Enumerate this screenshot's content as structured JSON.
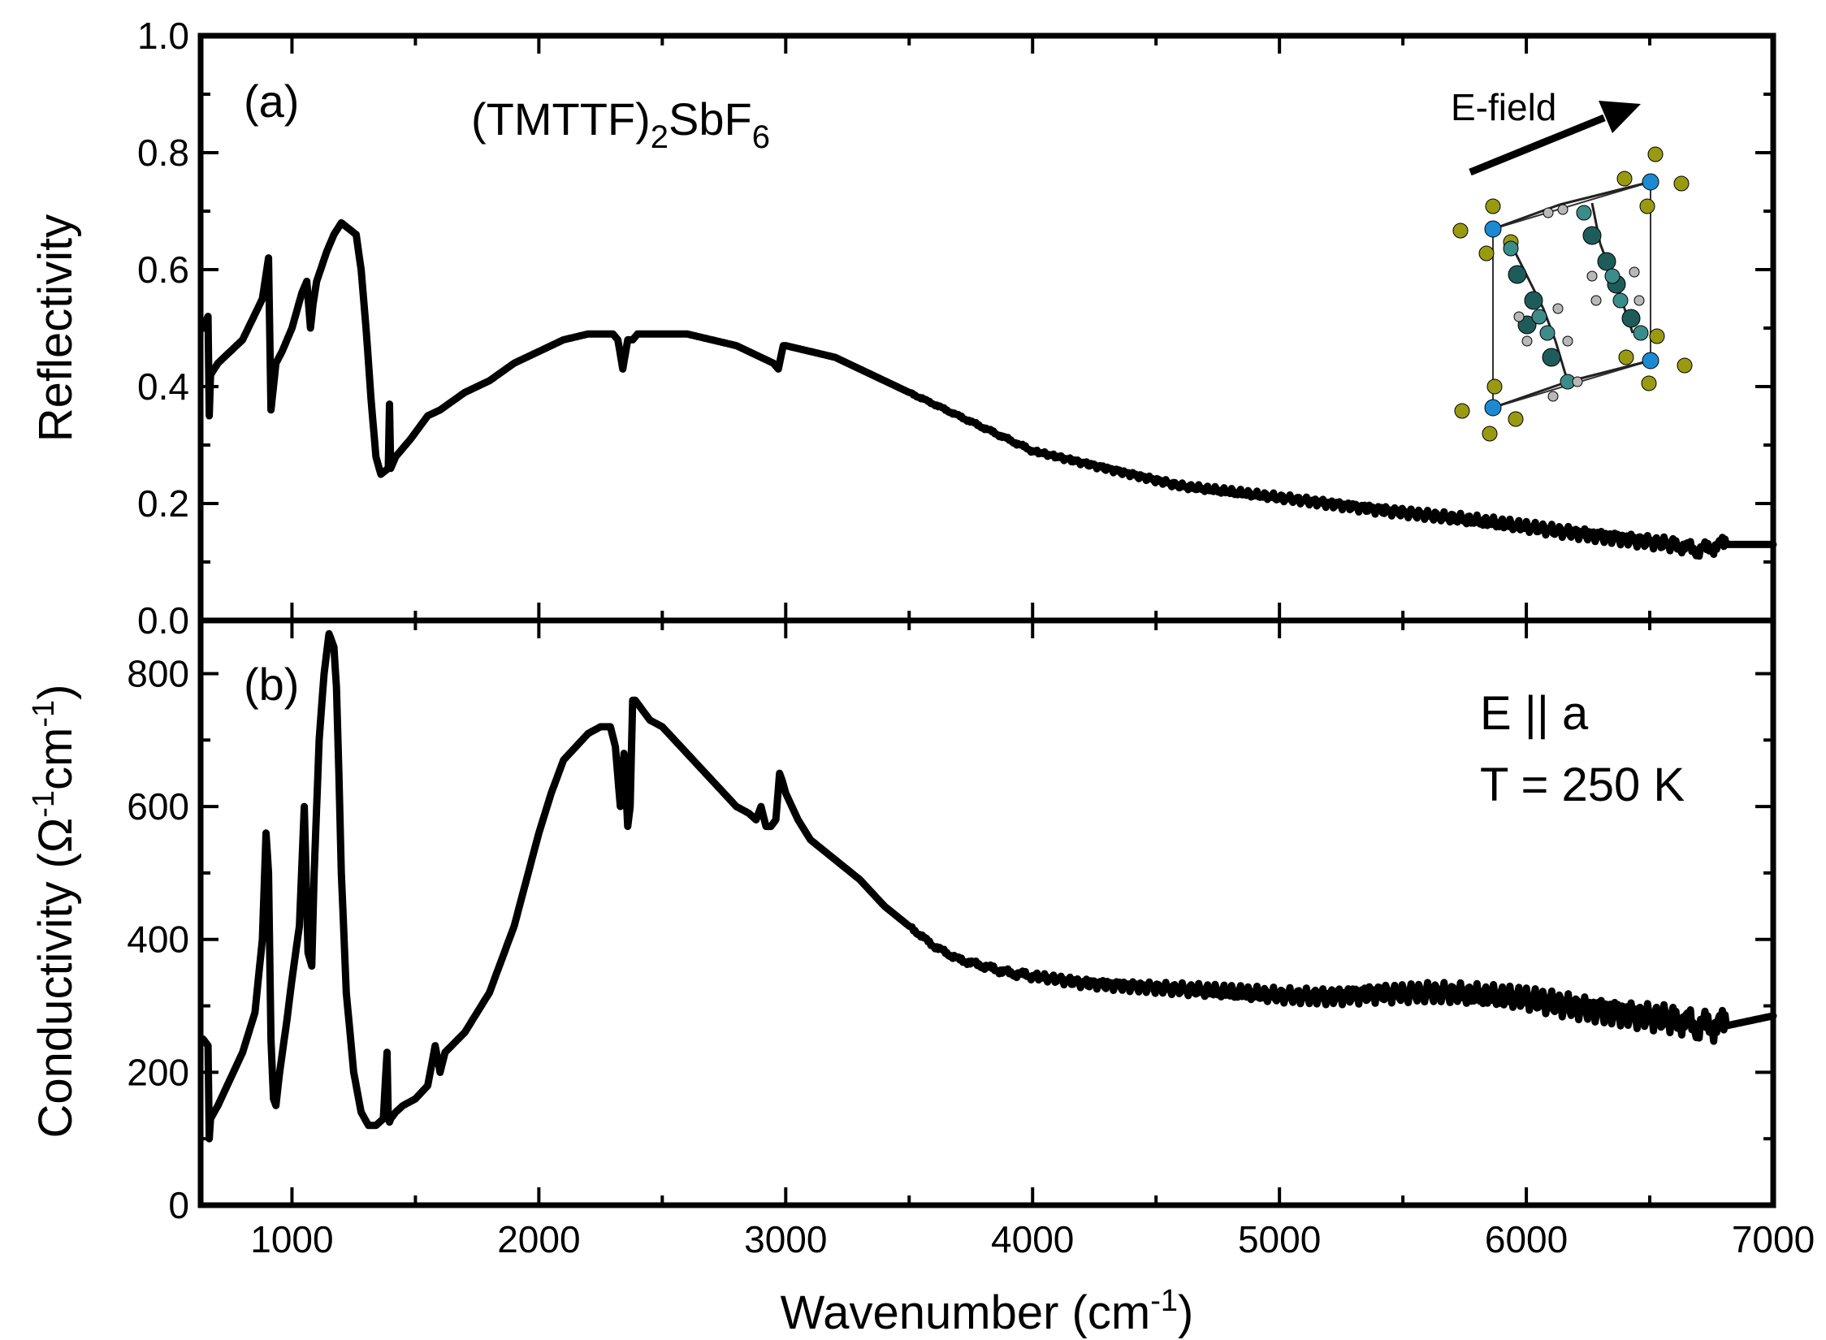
{
  "chart_data": [
    {
      "panel": "a",
      "type": "line",
      "panel_label": "(a)",
      "compound": {
        "base": "(TMTTF)",
        "sub1": "2",
        "mid": "SbF",
        "sub2": "6"
      },
      "inset_label": "E-field",
      "ylabel": "Reflectivity",
      "xlim": [
        630,
        7000
      ],
      "ylim": [
        0.0,
        1.0
      ],
      "yticks": [
        "0.0",
        "0.2",
        "0.4",
        "0.6",
        "0.8",
        "1.0"
      ],
      "series": [
        {
          "name": "Reflectivity",
          "x": [
            640,
            660,
            665,
            670,
            700,
            800,
            880,
            905,
            915,
            925,
            935,
            960,
            1000,
            1040,
            1060,
            1075,
            1085,
            1100,
            1140,
            1170,
            1200,
            1230,
            1260,
            1280,
            1300,
            1320,
            1340,
            1360,
            1390,
            1395,
            1400,
            1420,
            1480,
            1550,
            1600,
            1700,
            1800,
            1900,
            2000,
            2100,
            2200,
            2300,
            2320,
            2340,
            2360,
            2380,
            2400,
            2500,
            2600,
            2700,
            2800,
            2900,
            2950,
            2970,
            2990,
            3000,
            3100,
            3200,
            3300,
            3400,
            3500,
            3600,
            3700,
            3800,
            3900,
            4000,
            4200,
            4400,
            4600,
            4800,
            5000,
            5200,
            5400,
            5600,
            5800,
            6000,
            6200,
            6400,
            6600,
            6700,
            6800,
            6810,
            7000
          ],
          "y": [
            0.5,
            0.52,
            0.35,
            0.42,
            0.44,
            0.48,
            0.55,
            0.62,
            0.36,
            0.4,
            0.44,
            0.46,
            0.5,
            0.56,
            0.58,
            0.5,
            0.54,
            0.58,
            0.63,
            0.66,
            0.68,
            0.67,
            0.66,
            0.6,
            0.5,
            0.38,
            0.28,
            0.25,
            0.26,
            0.37,
            0.26,
            0.28,
            0.31,
            0.35,
            0.36,
            0.39,
            0.41,
            0.44,
            0.46,
            0.48,
            0.49,
            0.49,
            0.48,
            0.43,
            0.48,
            0.48,
            0.49,
            0.49,
            0.49,
            0.48,
            0.47,
            0.45,
            0.44,
            0.43,
            0.47,
            0.47,
            0.46,
            0.45,
            0.43,
            0.41,
            0.39,
            0.37,
            0.35,
            0.33,
            0.31,
            0.29,
            0.27,
            0.25,
            0.23,
            0.22,
            0.21,
            0.2,
            0.19,
            0.18,
            0.17,
            0.16,
            0.15,
            0.14,
            0.13,
            0.12,
            0.13,
            0.13,
            0.13
          ]
        }
      ]
    },
    {
      "panel": "b",
      "type": "line",
      "panel_label": "(b)",
      "condition_line1": "E || a",
      "condition_line2": "T = 250 K",
      "ylabel": "Conductivity (Ω-1cm-1)",
      "xlabel": "Wavenumber (cm-1)",
      "xlim": [
        630,
        7000
      ],
      "ylim": [
        0,
        880
      ],
      "yticks": [
        "0",
        "200",
        "400",
        "600",
        "800"
      ],
      "xticks": [
        "1000",
        "2000",
        "3000",
        "4000",
        "5000",
        "6000",
        "7000"
      ],
      "series": [
        {
          "name": "Conductivity",
          "x": [
            640,
            660,
            665,
            670,
            700,
            750,
            800,
            850,
            880,
            895,
            905,
            915,
            925,
            935,
            950,
            980,
            1000,
            1030,
            1050,
            1065,
            1080,
            1090,
            1110,
            1130,
            1150,
            1170,
            1180,
            1190,
            1200,
            1220,
            1250,
            1280,
            1310,
            1340,
            1370,
            1385,
            1390,
            1395,
            1400,
            1420,
            1450,
            1500,
            1550,
            1580,
            1600,
            1620,
            1700,
            1800,
            1900,
            2000,
            2050,
            2100,
            2150,
            2200,
            2250,
            2290,
            2310,
            2330,
            2345,
            2360,
            2370,
            2380,
            2390,
            2450,
            2500,
            2600,
            2700,
            2800,
            2850,
            2880,
            2900,
            2920,
            2940,
            2960,
            2975,
            2985,
            3000,
            3050,
            3100,
            3200,
            3300,
            3400,
            3500,
            3600,
            3700,
            3800,
            3900,
            4000,
            4200,
            4400,
            4600,
            4800,
            5000,
            5200,
            5400,
            5600,
            5800,
            6000,
            6200,
            6400,
            6600,
            6700,
            6800,
            6810,
            7000
          ],
          "y": [
            250,
            240,
            100,
            130,
            150,
            190,
            230,
            290,
            400,
            560,
            500,
            250,
            160,
            150,
            200,
            280,
            340,
            420,
            600,
            380,
            360,
            500,
            700,
            800,
            860,
            840,
            780,
            650,
            500,
            320,
            200,
            140,
            120,
            120,
            130,
            230,
            130,
            125,
            130,
            140,
            150,
            160,
            180,
            240,
            200,
            230,
            260,
            320,
            420,
            560,
            620,
            670,
            690,
            710,
            720,
            720,
            690,
            600,
            680,
            570,
            600,
            760,
            760,
            730,
            720,
            680,
            640,
            600,
            590,
            580,
            600,
            570,
            570,
            580,
            650,
            640,
            620,
            580,
            550,
            520,
            490,
            450,
            420,
            390,
            370,
            360,
            350,
            345,
            335,
            330,
            325,
            320,
            315,
            315,
            320,
            320,
            315,
            310,
            300,
            290,
            280,
            270,
            270,
            270,
            285
          ]
        }
      ]
    }
  ],
  "colors": {
    "line": "#000000",
    "atom_s": "#1e5c5a",
    "atom_c": "#3c8c8a",
    "atom_h": "#b8b8b8",
    "atom_f": "#9a9a10",
    "atom_sb": "#1c8ad2"
  },
  "inset_icon": "crystal-structure-icon"
}
